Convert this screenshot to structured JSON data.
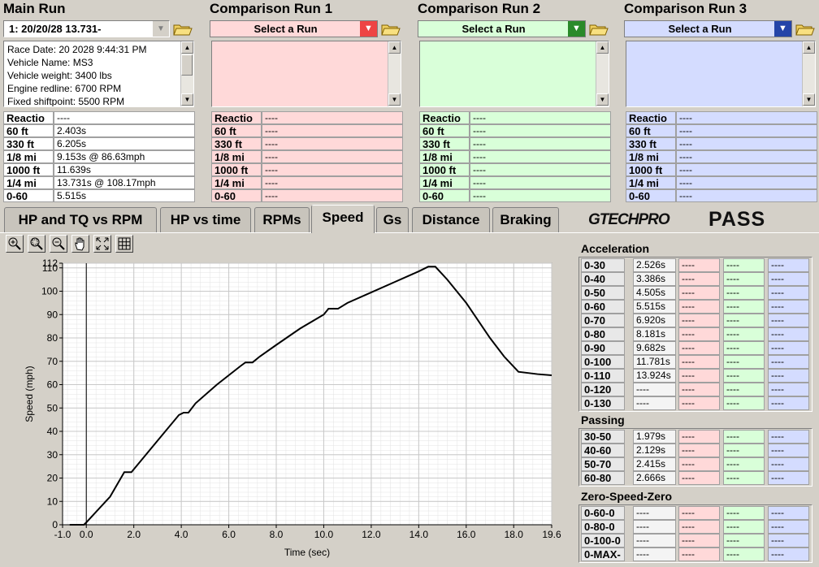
{
  "main_run": {
    "title": "Main Run",
    "selector": "1:   20/20/28 13.731-",
    "info": [
      "Race Date: 20 2028  9:44:31 PM",
      "Vehicle Name: MS3",
      "Vehicle weight: 3400 lbs",
      "Engine redline: 6700 RPM",
      "Fixed shiftpoint: 5500 RPM"
    ],
    "results": [
      [
        "Reactio",
        "----"
      ],
      [
        "60 ft",
        "2.403s"
      ],
      [
        "330 ft",
        "6.205s"
      ],
      [
        "1/8 mi",
        "9.153s @ 86.63mph"
      ],
      [
        "1000 ft",
        "11.639s"
      ],
      [
        "1/4 mi",
        "13.731s @ 108.17mph"
      ],
      [
        "0-60",
        "5.515s"
      ]
    ]
  },
  "comparison_runs": [
    {
      "title": "Comparison Run 1",
      "selector": "Select a Run",
      "color": "#ffd9d9",
      "accent": "#ee4444",
      "results": [
        [
          "Reactio",
          "----"
        ],
        [
          "60 ft",
          "----"
        ],
        [
          "330 ft",
          "----"
        ],
        [
          "1/8 mi",
          "----"
        ],
        [
          "1000 ft",
          "----"
        ],
        [
          "1/4 mi",
          "----"
        ],
        [
          "0-60",
          "----"
        ]
      ]
    },
    {
      "title": "Comparison Run 2",
      "selector": "Select a Run",
      "color": "#d9ffd9",
      "accent": "#2a8a2a",
      "results": [
        [
          "Reactio",
          "----"
        ],
        [
          "60 ft",
          "----"
        ],
        [
          "330 ft",
          "----"
        ],
        [
          "1/8 mi",
          "----"
        ],
        [
          "1000 ft",
          "----"
        ],
        [
          "1/4 mi",
          "----"
        ],
        [
          "0-60",
          "----"
        ]
      ]
    },
    {
      "title": "Comparison Run 3",
      "selector": "Select a Run",
      "color": "#d4dcff",
      "accent": "#2444a8",
      "results": [
        [
          "Reactio",
          "----"
        ],
        [
          "60 ft",
          "----"
        ],
        [
          "330 ft",
          "----"
        ],
        [
          "1/8 mi",
          "----"
        ],
        [
          "1000 ft",
          "----"
        ],
        [
          "1/4 mi",
          "----"
        ],
        [
          "0-60",
          "----"
        ]
      ]
    }
  ],
  "tabs": [
    "HP and TQ vs RPM",
    "HP vs time",
    "RPMs",
    "Speed",
    "Gs",
    "Distance",
    "Braking"
  ],
  "active_tab": 3,
  "logo": {
    "brand": "GTECHPRO",
    "product": "PASS"
  },
  "chart_data": {
    "type": "line",
    "xlabel": "Time (sec)",
    "ylabel": "Speed (mph)",
    "color": "#000000",
    "grid": true,
    "x": [
      -0.7,
      -0.1,
      0,
      1,
      1.6,
      1.9,
      3,
      3.9,
      4.1,
      4.3,
      4.6,
      5.5,
      6.5,
      6.7,
      7,
      7.3,
      8,
      9,
      10,
      10.2,
      10.6,
      11,
      12,
      13,
      14,
      14.4,
      14.7,
      15.2,
      16,
      17,
      17.6,
      18.2,
      19,
      19.6
    ],
    "values": [
      0,
      0,
      1,
      12,
      22.5,
      22.5,
      36,
      47,
      48,
      48,
      52,
      60,
      68,
      69.5,
      69.5,
      72,
      77,
      84,
      90,
      92.5,
      92.5,
      95,
      99.5,
      104,
      108.5,
      110.5,
      110.5,
      105,
      95,
      80,
      72,
      65.5,
      64.5,
      64
    ],
    "xlim": [
      -1,
      19.6
    ],
    "ylim": [
      0,
      112
    ],
    "xticks": [
      {
        "value": -1,
        "label": "-1.0"
      },
      {
        "value": 0,
        "label": "0.0"
      },
      {
        "value": 2,
        "label": "2.0"
      },
      {
        "value": 4,
        "label": "4.0"
      },
      {
        "value": 6,
        "label": "6.0"
      },
      {
        "value": 8,
        "label": "8.0"
      },
      {
        "value": 10,
        "label": "10.0"
      },
      {
        "value": 12,
        "label": "12.0"
      },
      {
        "value": 14,
        "label": "14.0"
      },
      {
        "value": 16,
        "label": "16.0"
      },
      {
        "value": 18,
        "label": "18.0"
      },
      {
        "value": 19.6,
        "label": "19.6"
      }
    ],
    "yticks": [
      0,
      10,
      20,
      30,
      40,
      50,
      60,
      70,
      80,
      90,
      100,
      110,
      112
    ]
  },
  "sections": [
    {
      "title": "Acceleration",
      "rows": [
        [
          "0-30",
          "2.526s",
          "----",
          "----",
          "----"
        ],
        [
          "0-40",
          "3.386s",
          "----",
          "----",
          "----"
        ],
        [
          "0-50",
          "4.505s",
          "----",
          "----",
          "----"
        ],
        [
          "0-60",
          "5.515s",
          "----",
          "----",
          "----"
        ],
        [
          "0-70",
          "6.920s",
          "----",
          "----",
          "----"
        ],
        [
          "0-80",
          "8.181s",
          "----",
          "----",
          "----"
        ],
        [
          "0-90",
          "9.682s",
          "----",
          "----",
          "----"
        ],
        [
          "0-100",
          "11.781s",
          "----",
          "----",
          "----"
        ],
        [
          "0-110",
          "13.924s",
          "----",
          "----",
          "----"
        ],
        [
          "0-120",
          "----",
          "----",
          "----",
          "----"
        ],
        [
          "0-130",
          "----",
          "----",
          "----",
          "----"
        ]
      ]
    },
    {
      "title": "Passing",
      "rows": [
        [
          "30-50",
          "1.979s",
          "----",
          "----",
          "----"
        ],
        [
          "40-60",
          "2.129s",
          "----",
          "----",
          "----"
        ],
        [
          "50-70",
          "2.415s",
          "----",
          "----",
          "----"
        ],
        [
          "60-80",
          "2.666s",
          "----",
          "----",
          "----"
        ]
      ]
    },
    {
      "title": "Zero-Speed-Zero",
      "rows": [
        [
          "0-60-0",
          "----",
          "----",
          "----",
          "----"
        ],
        [
          "0-80-0",
          "----",
          "----",
          "----",
          "----"
        ],
        [
          "0-100-0",
          "----",
          "----",
          "----",
          "----"
        ],
        [
          "0-MAX-",
          "----",
          "----",
          "----",
          "----"
        ]
      ]
    }
  ]
}
